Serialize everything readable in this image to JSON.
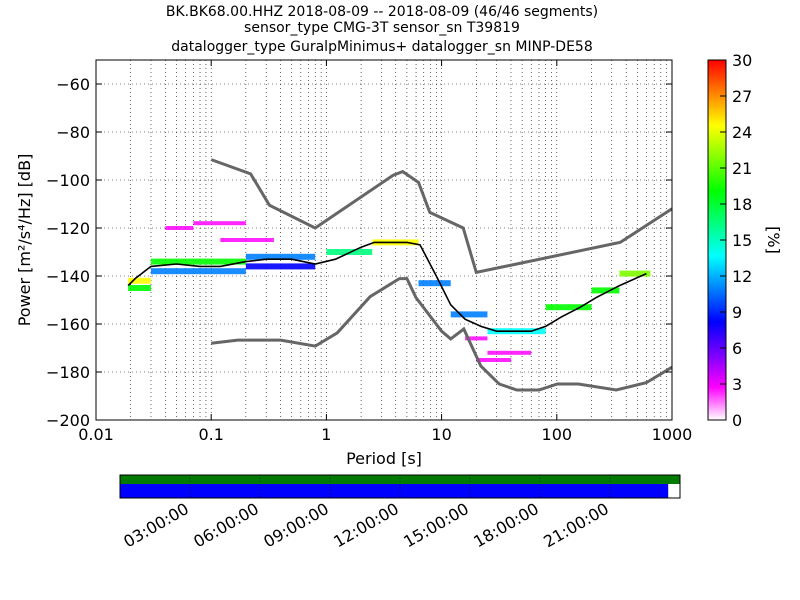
{
  "title_lines": [
    "BK.BK68.00.HHZ   2018-08-09 -- 2018-08-09  (46/46 segments)",
    "sensor_type CMG-3T sensor_sn T39819",
    "datalogger_type GuralpMinimus+ datalogger_sn MINP-DE58"
  ],
  "chart_data": {
    "type": "heatmap",
    "xscale": "log",
    "xlabel": "Period [s]",
    "ylabel": "Power [m²/s⁴/Hz] [dB]",
    "xlim": [
      0.01,
      1000
    ],
    "ylim": [
      -200,
      -50
    ],
    "x_ticks": [
      0.01,
      0.1,
      1,
      10,
      100,
      1000
    ],
    "x_tick_labels": [
      "0.01",
      "0.1",
      "1",
      "10",
      "100",
      "1000"
    ],
    "y_ticks": [
      -200,
      -180,
      -160,
      -140,
      -120,
      -100,
      -80,
      -60
    ],
    "y_tick_labels": [
      "−200",
      "−180",
      "−160",
      "−140",
      "−120",
      "−100",
      "−80",
      "−60"
    ],
    "grid": true,
    "colorbar": {
      "label": "[%]",
      "range": [
        0,
        30
      ],
      "ticks": [
        0,
        3,
        6,
        9,
        12,
        15,
        18,
        21,
        24,
        27,
        30
      ],
      "tick_labels": [
        "0",
        "3",
        "6",
        "9",
        "12",
        "15",
        "18",
        "21",
        "24",
        "27",
        "30"
      ],
      "colors": [
        "#ffffff",
        "#ff00ff",
        "#7a00ff",
        "#0000ff",
        "#0080ff",
        "#00ffff",
        "#00ff80",
        "#00ff00",
        "#80ff00",
        "#ffff00",
        "#ff8000",
        "#ff0000"
      ]
    },
    "noise_models": {
      "color": "#666666",
      "high": {
        "x": [
          0.1,
          0.22,
          0.32,
          0.8,
          3.8,
          4.6,
          6.3,
          7.9,
          15.4,
          20,
          354.8,
          1000
        ],
        "y": [
          -91.5,
          -97.4,
          -110.5,
          -120,
          -98,
          -96.5,
          -101,
          -113.5,
          -120,
          -138.5,
          -126,
          -112
        ]
      },
      "low": {
        "x": [
          0.1,
          0.17,
          0.4,
          0.8,
          1.24,
          2.4,
          4.3,
          5.0,
          6.0,
          10.0,
          12.0,
          15.6,
          21.9,
          31.6,
          45.0,
          70.0,
          101.0,
          154.0,
          328.0,
          600.0,
          1000.0
        ],
        "y": [
          -168,
          -166.7,
          -166.7,
          -169.2,
          -163.7,
          -148.6,
          -141.1,
          -141.1,
          -149,
          -163,
          -166.2,
          -162.1,
          -177.5,
          -185,
          -187.5,
          -187.5,
          -185,
          -185,
          -187.5,
          -184.4,
          -178
        ]
      }
    },
    "mode_line": {
      "x": [
        0.019,
        0.022,
        0.03,
        0.05,
        0.08,
        0.12,
        0.2,
        0.3,
        0.5,
        0.8,
        1.2,
        2.0,
        2.6,
        4.0,
        5.0,
        6.5,
        9.0,
        12.0,
        16.0,
        22.0,
        30.0,
        45.0,
        60.0,
        80.0,
        110.0,
        160.0,
        220.0,
        350.0,
        600.0
      ],
      "y": [
        -144,
        -141,
        -136,
        -135,
        -136,
        -136,
        -134,
        -133,
        -133,
        -135,
        -133,
        -128,
        -126,
        -126,
        -126,
        -127,
        -140,
        -152,
        -158,
        -161,
        -163,
        -163,
        -163,
        -161,
        -157,
        -153,
        -149,
        -144,
        -139
      ]
    },
    "pdf_bands": [
      {
        "x0": 0.019,
        "x1": 0.03,
        "y": -142,
        "pct": 25
      },
      {
        "x0": 0.019,
        "x1": 0.03,
        "y": -145,
        "pct": 18
      },
      {
        "x0": 0.03,
        "x1": 0.2,
        "y": -134,
        "pct": 20
      },
      {
        "x0": 0.03,
        "x1": 0.2,
        "y": -138,
        "pct": 10
      },
      {
        "x0": 0.2,
        "x1": 0.8,
        "y": -132,
        "pct": 12
      },
      {
        "x0": 0.2,
        "x1": 0.8,
        "y": -136,
        "pct": 8
      },
      {
        "x0": 1.0,
        "x1": 2.5,
        "y": -130,
        "pct": 15
      },
      {
        "x0": 2.5,
        "x1": 6.3,
        "y": -126,
        "pct": 25
      },
      {
        "x0": 6.3,
        "x1": 12.0,
        "y": -143,
        "pct": 10
      },
      {
        "x0": 12.0,
        "x1": 25.0,
        "y": -156,
        "pct": 10
      },
      {
        "x0": 25.0,
        "x1": 80.0,
        "y": -163,
        "pct": 14
      },
      {
        "x0": 80.0,
        "x1": 200.0,
        "y": -153,
        "pct": 18
      },
      {
        "x0": 200.0,
        "x1": 350.0,
        "y": -146,
        "pct": 20
      },
      {
        "x0": 350.0,
        "x1": 650.0,
        "y": -139,
        "pct": 22
      }
    ],
    "pdf_scatter": [
      {
        "x0": 0.04,
        "x1": 0.07,
        "y": -120,
        "pct": 2
      },
      {
        "x0": 0.07,
        "x1": 0.2,
        "y": -118,
        "pct": 2
      },
      {
        "x0": 0.12,
        "x1": 0.35,
        "y": -125,
        "pct": 3
      },
      {
        "x0": 16.0,
        "x1": 25.0,
        "y": -166,
        "pct": 4
      },
      {
        "x0": 25.0,
        "x1": 60.0,
        "y": -172,
        "pct": 3
      },
      {
        "x0": 20.0,
        "x1": 40.0,
        "y": -175,
        "pct": 2
      }
    ]
  },
  "timeline": {
    "tick_labels": [
      "03:00:00",
      "06:00:00",
      "09:00:00",
      "12:00:00",
      "15:00:00",
      "18:00:00",
      "21:00:00"
    ],
    "coverage_fraction": 0.979,
    "colors": {
      "top": "#007a00",
      "bottom": "#0000ff"
    }
  }
}
